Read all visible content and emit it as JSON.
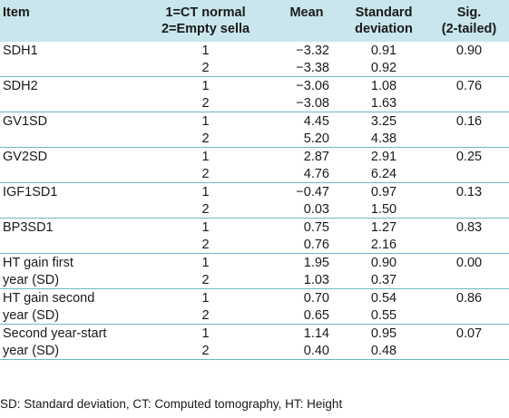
{
  "header": {
    "item": "Item",
    "group_line1": "1=CT normal",
    "group_line2": "2=Empty sella",
    "mean": "Mean",
    "sd_line1": "Standard",
    "sd_line2": "deviation",
    "sig_line1": "Sig.",
    "sig_line2": "(2-tailed)"
  },
  "rows": [
    {
      "item_line1": "SDH1",
      "item_line2": "",
      "g1": "1",
      "g2": "2",
      "mean1": "−3.32",
      "mean2": "−3.38",
      "sd1": "0.91",
      "sd2": "0.92",
      "sig": "0.90"
    },
    {
      "item_line1": "SDH2",
      "item_line2": "",
      "g1": "1",
      "g2": "2",
      "mean1": "−3.06",
      "mean2": "−3.08",
      "sd1": "1.08",
      "sd2": "1.63",
      "sig": "0.76"
    },
    {
      "item_line1": "GV1SD",
      "item_line2": "",
      "g1": "1",
      "g2": "2",
      "mean1": "4.45",
      "mean2": "5.20",
      "sd1": "3.25",
      "sd2": "4.38",
      "sig": "0.16"
    },
    {
      "item_line1": "GV2SD",
      "item_line2": "",
      "g1": "1",
      "g2": "2",
      "mean1": "2.87",
      "mean2": "4.76",
      "sd1": "2.91",
      "sd2": "6.24",
      "sig": "0.25"
    },
    {
      "item_line1": "IGF1SD1",
      "item_line2": "",
      "g1": "1",
      "g2": "2",
      "mean1": "−0.47",
      "mean2": "0.03",
      "sd1": "0.97",
      "sd2": "1.50",
      "sig": "0.13"
    },
    {
      "item_line1": "BP3SD1",
      "item_line2": "",
      "g1": "1",
      "g2": "2",
      "mean1": "0.75",
      "mean2": "0.76",
      "sd1": "1.27",
      "sd2": "2.16",
      "sig": "0.83"
    },
    {
      "item_line1": "HT gain first",
      "item_line2": "year (SD)",
      "g1": "1",
      "g2": "2",
      "mean1": "1.95",
      "mean2": "1.03",
      "sd1": "0.90",
      "sd2": "0.37",
      "sig": "0.00"
    },
    {
      "item_line1": "HT gain second",
      "item_line2": "year (SD)",
      "g1": "1",
      "g2": "2",
      "mean1": "0.70",
      "mean2": "0.65",
      "sd1": "0.54",
      "sd2": "0.55",
      "sig": "0.86"
    },
    {
      "item_line1": "Second year-start",
      "item_line2": "year (SD)",
      "g1": "1",
      "g2": "2",
      "mean1": "1.14",
      "mean2": "0.40",
      "sd1": "0.95",
      "sd2": "0.48",
      "sig": "0.07"
    }
  ],
  "footnote": "SD: Standard deviation, CT: Computed tomography, HT: Height"
}
